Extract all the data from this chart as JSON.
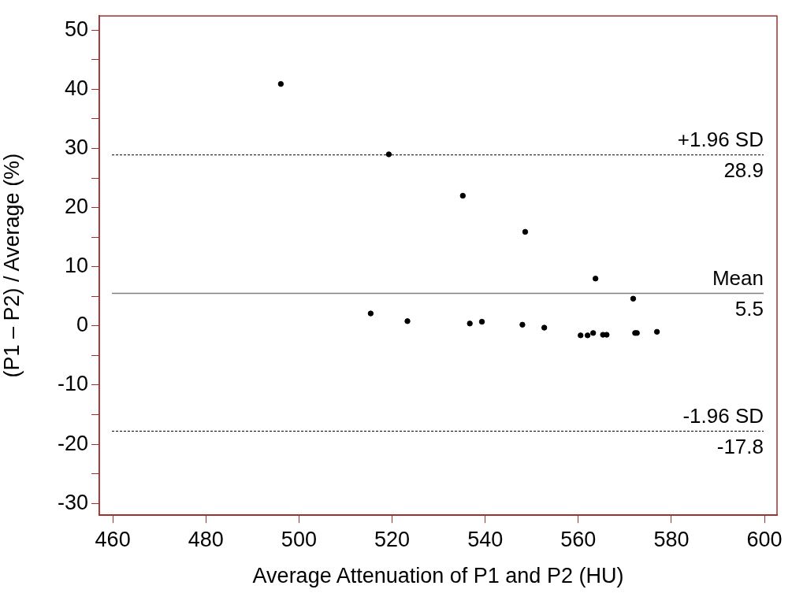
{
  "chart_data": {
    "type": "scatter",
    "xlabel": "Average Attenuation of P1 and P2 (HU)",
    "ylabel": "(P1 – P2) / Average (%)",
    "x": [
      496.1,
      519.3,
      535.2,
      548.6,
      563.7,
      571.8,
      515.4,
      523.3,
      536.7,
      539.3,
      548.0,
      552.7,
      560.5,
      562.0,
      563.2,
      565.3,
      566.1,
      572.2,
      572.6,
      576.9
    ],
    "values": [
      40.9,
      29.0,
      22.0,
      15.9,
      8.0,
      4.6,
      2.1,
      0.8,
      0.4,
      0.7,
      0.2,
      -0.3,
      -1.6,
      -1.6,
      -1.2,
      -1.5,
      -1.5,
      -1.2,
      -1.2,
      -1.0
    ],
    "color": "#000000",
    "marker": "circle",
    "xlim": [
      457.1,
      602.7
    ],
    "ylim": [
      -32,
      52.4
    ],
    "xticks": [
      460,
      480,
      500,
      520,
      540,
      560,
      580,
      600
    ],
    "yticks": [
      -30,
      {
        "value": -25,
        "label": null
      },
      -20,
      {
        "value": -15,
        "label": null
      },
      -10,
      {
        "value": -5,
        "label": null
      },
      0,
      {
        "value": 5,
        "label": null
      },
      10,
      {
        "value": 15,
        "label": null
      },
      20,
      {
        "value": 25,
        "label": null
      },
      30,
      {
        "value": 35,
        "label": null
      },
      40,
      {
        "value": 45,
        "label": null
      },
      50
    ],
    "annotations": [
      {
        "text": "28.9",
        "y": 28.9
      },
      {
        "text": "5.5",
        "y": 5.5
      },
      {
        "text": "-17.8",
        "y": -17.8
      }
    ],
    "grid": false,
    "legend": false,
    "ref_lines": [
      {
        "axis": "y",
        "value": 28.9,
        "label": "+1.96 SD",
        "color": "#000000",
        "line_style": "dashed"
      },
      {
        "axis": "y",
        "value": 5.5,
        "label": "Mean",
        "color": "#808080",
        "line_style": "solid"
      },
      {
        "axis": "y",
        "value": -17.8,
        "label": "-1.96 SD",
        "color": "#000000",
        "line_style": "dashed"
      }
    ]
  }
}
